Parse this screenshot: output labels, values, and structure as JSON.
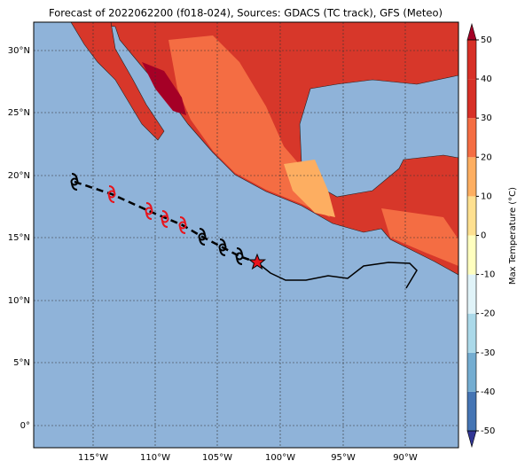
{
  "title": "Forecast of 2022062200 (f018-024), Sources: GDACS (TC track), GFS (Meteo)",
  "lat_labels": [
    "30°N",
    "25°N",
    "20°N",
    "15°N",
    "10°N",
    "5°N",
    "0°"
  ],
  "lon_labels": [
    "115°W",
    "110°W",
    "105°W",
    "100°W",
    "95°W",
    "90°W"
  ],
  "colorbar": {
    "label": "Max Temperature (°C)",
    "lim": [
      -50,
      50
    ],
    "ticks": [
      -50,
      -40,
      -30,
      -20,
      -10,
      0,
      10,
      20,
      30,
      40,
      50
    ]
  }
}
